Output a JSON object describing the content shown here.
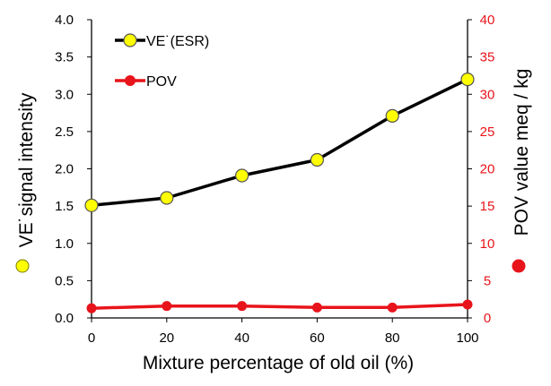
{
  "chart_data": {
    "type": "line",
    "x": [
      0,
      20,
      40,
      60,
      80,
      100
    ],
    "xlabel": "Mixture percentage of old oil (%)",
    "ylabel": "VE˙signal intensity",
    "ylabel_right": "POV value meq / kg",
    "xlim": [
      0,
      100
    ],
    "ylim": [
      0,
      4.0
    ],
    "ylim_right": [
      0,
      40
    ],
    "x_ticks": [
      "0",
      "20",
      "40",
      "60",
      "80",
      "100"
    ],
    "y_ticks": [
      "0.0",
      "0.5",
      "1.0",
      "1.5",
      "2.0",
      "2.5",
      "3.0",
      "3.5",
      "4.0"
    ],
    "y_ticks_right": [
      "0",
      "5",
      "10",
      "15",
      "20",
      "25",
      "30",
      "35",
      "40"
    ],
    "grid": false,
    "legend_position": "top-left",
    "series": [
      {
        "name": "VE˙(ESR)",
        "axis": "left",
        "values": [
          1.51,
          1.61,
          1.91,
          2.12,
          2.71,
          3.2
        ],
        "line_color": "#000000",
        "marker_color": "#ffff00"
      },
      {
        "name": "POV",
        "axis": "right",
        "values": [
          1.3,
          1.6,
          1.6,
          1.4,
          1.4,
          1.8
        ],
        "line_color": "#e8141b",
        "marker_color": "#e8141b"
      }
    ],
    "right_axis_color": "#e8141b"
  }
}
